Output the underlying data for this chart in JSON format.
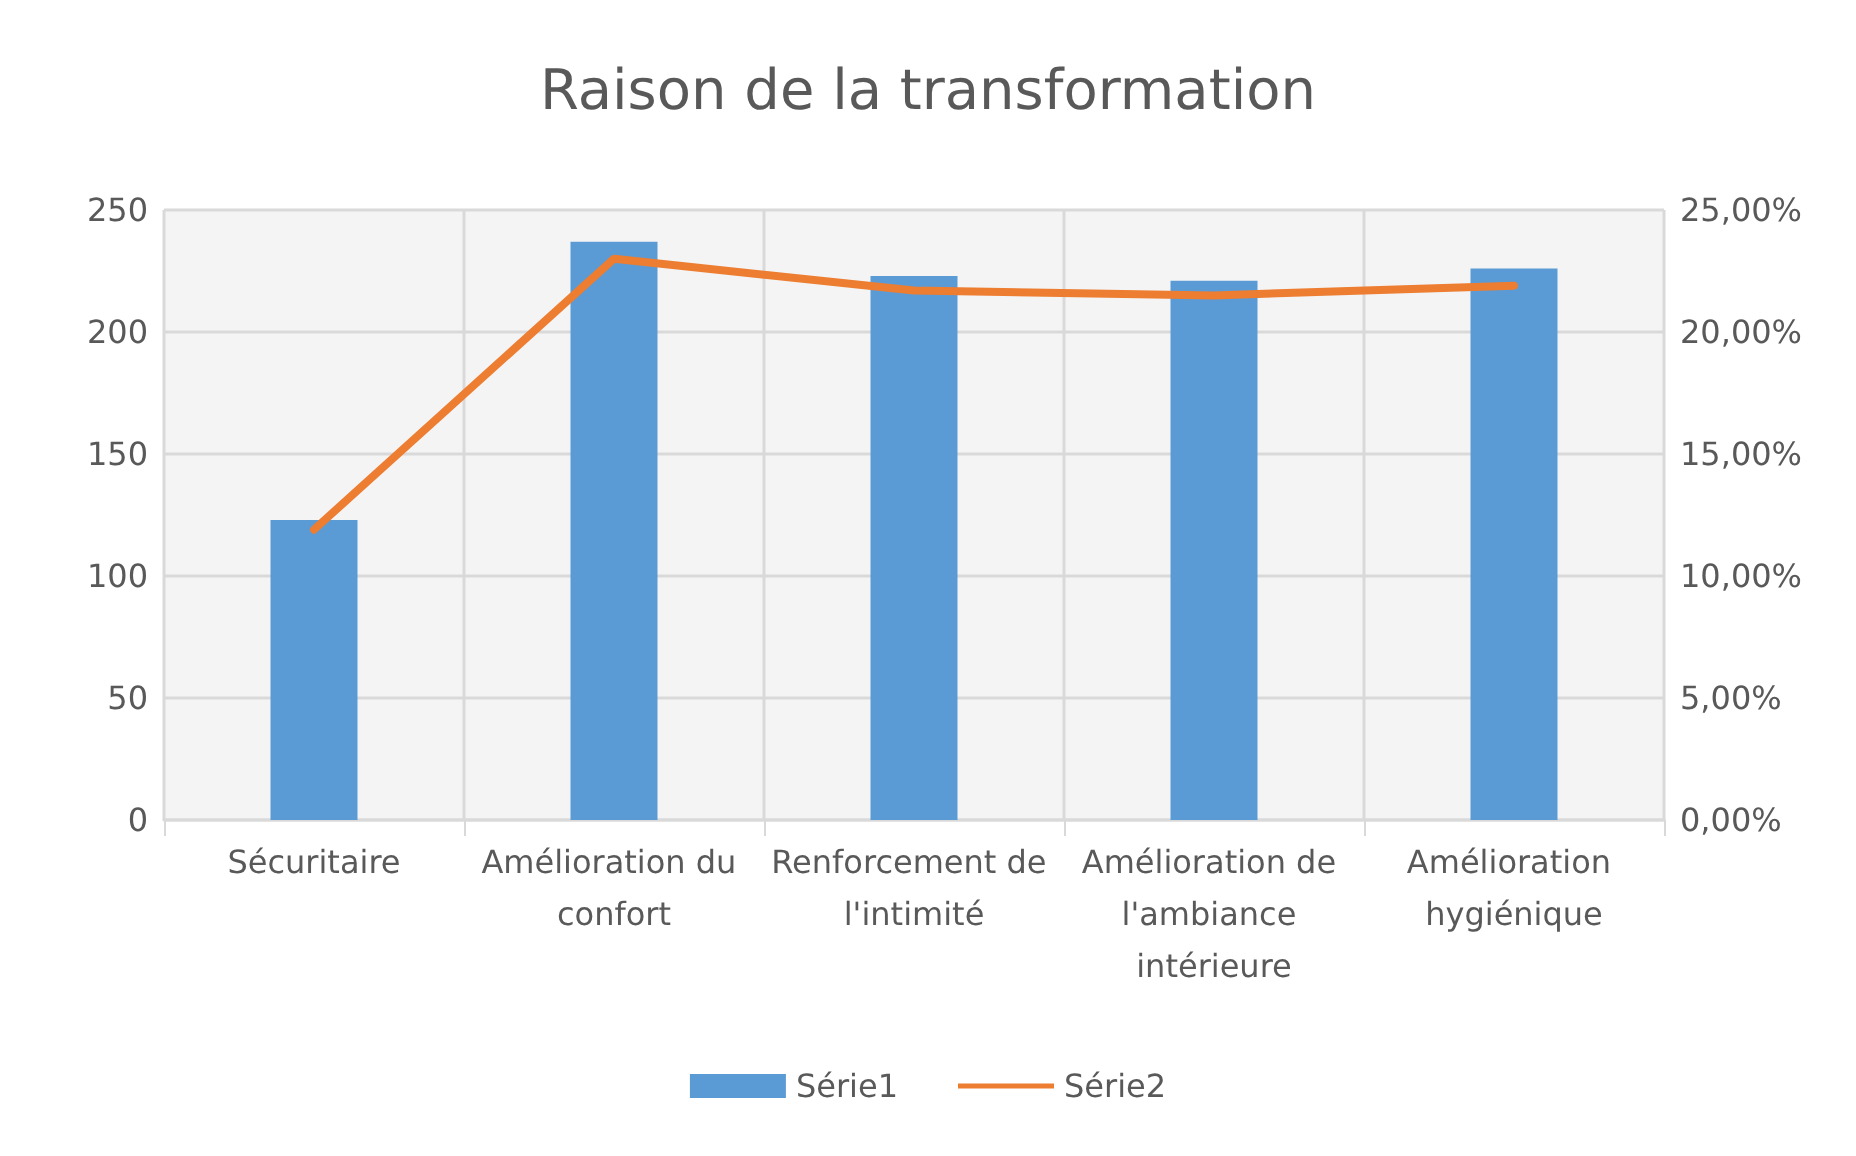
{
  "chart_data": {
    "type": "bar",
    "title": "Raison de la transformation",
    "categories": [
      "Sécuritaire",
      "Amélioration du confort",
      "Renforcement de l'intimité",
      "Amélioration de l'ambiance intérieure",
      "Amélioration hygiénique"
    ],
    "series": [
      {
        "name": "Série1",
        "color": "#5b9bd5",
        "values": [
          123,
          237,
          223,
          221,
          226
        ]
      },
      {
        "name": "Série2",
        "type": "line",
        "axis": "y2",
        "color": "#ed7d31",
        "values": [
          11.9,
          23.0,
          21.7,
          21.5,
          21.9
        ]
      }
    ],
    "ylim": [
      0,
      250
    ],
    "yticks": [
      0,
      50,
      100,
      150,
      200,
      250
    ],
    "y2lim": [
      0,
      25
    ],
    "y2ticks": [
      {
        "value": 0,
        "label": "0,00%"
      },
      {
        "value": 5,
        "label": "5,00%"
      },
      {
        "value": 10,
        "label": "10,00%"
      },
      {
        "value": 15,
        "label": "15,00%"
      },
      {
        "value": 20,
        "label": "20,00%"
      },
      {
        "value": 25,
        "label": "25,00%"
      }
    ],
    "grid": true,
    "legend": "bottom",
    "marker": "none"
  }
}
